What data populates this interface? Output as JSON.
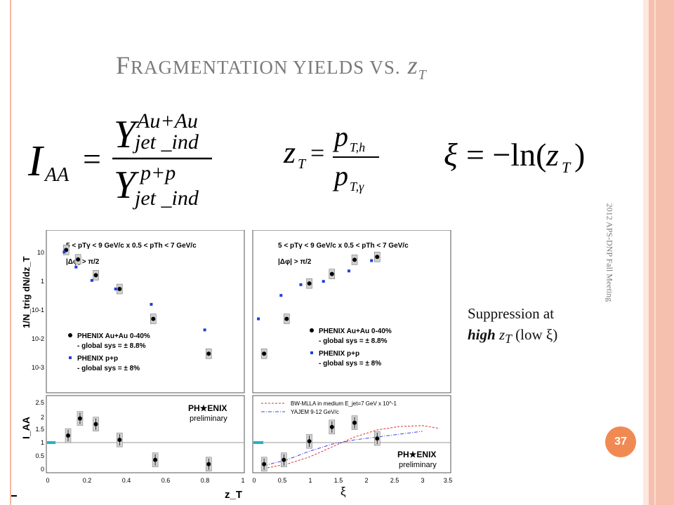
{
  "slide": {
    "title_first_letter": "F",
    "title_rest": "RAGMENTATION YIELDS VS.",
    "title_z": "z",
    "title_z_sub": "T",
    "side_text": "2012 APS-DNP Fall Meeting",
    "page_number": "37",
    "note_line1": "Suppression at",
    "note_bold": "high",
    "note_z": "z",
    "note_z_sub": "T",
    "note_tail": "(low ξ)"
  },
  "equations": {
    "iaa_I": "I",
    "iaa_sub": "AA",
    "eq_sign": "=",
    "Y": "Y",
    "num_sup": "Au+Au",
    "den_sup": "p+p",
    "yield_sub": "jet _ind",
    "zt_z": "z",
    "zt_sub": "T",
    "zt_num_p": "p",
    "zt_num_sub": "T,h",
    "zt_den_p": "p",
    "zt_den_sub": "T,γ",
    "xi_lhs": "ξ",
    "xi_rhs": "= −ln(",
    "xi_z": "z",
    "xi_z_sub": "T",
    "xi_close": ")"
  },
  "chart_data": [
    {
      "type": "scatter",
      "panel": "yield vs zT",
      "ylabel": "1/N_trig dN/dz_T",
      "yscale": "log",
      "ylim": [
        0.0002,
        30
      ],
      "xlim": [
        0,
        1
      ],
      "ytick_labels": [
        "10",
        "1",
        "10-1",
        "10-2",
        "10-3"
      ],
      "header": "5 < pTγ < 9 GeV/c x 0.5 < pTh < 7 GeV/c",
      "cut": "|Δφ| > π/2",
      "series": [
        {
          "name": "PHENIX Au+Au 0-40%",
          "sys": "- global sys = ± 8.8%",
          "color": "#000000",
          "x": [
            0.1,
            0.16,
            0.25,
            0.37,
            0.54,
            0.82
          ],
          "y": [
            7.0,
            3.5,
            1.1,
            0.4,
            0.045,
            0.0035
          ]
        },
        {
          "name": "PHENIX p+p",
          "sys": "- global sys = ± 8%",
          "color": "#1f3fd8",
          "x": [
            0.09,
            0.15,
            0.23,
            0.35,
            0.53,
            0.8
          ],
          "y": [
            6.0,
            2.0,
            0.75,
            0.4,
            0.13,
            0.02
          ]
        }
      ]
    },
    {
      "type": "scatter",
      "panel": "yield vs xi",
      "yscale": "log",
      "ylim": [
        0.0002,
        30
      ],
      "xlim": [
        0,
        3.5
      ],
      "header": "5 < pTγ < 9 GeV/c x 0.5 < pTh < 7 GeV/c",
      "cut": "|Δφ| > π/2",
      "series": [
        {
          "name": "PHENIX Au+Au 0-40%",
          "sys": "- global sys = ± 8.8%",
          "color": "#000000",
          "x": [
            0.2,
            0.6,
            1.0,
            1.4,
            1.8,
            2.2
          ],
          "y": [
            0.0035,
            0.045,
            0.6,
            1.2,
            3.4,
            4.2
          ]
        },
        {
          "name": "PHENIX p+p",
          "sys": "- global sys = ± 8%",
          "color": "#1f3fd8",
          "x": [
            0.1,
            0.5,
            0.85,
            1.25,
            1.7,
            2.1
          ],
          "y": [
            0.045,
            0.25,
            0.55,
            0.7,
            1.5,
            3.2
          ]
        }
      ]
    },
    {
      "type": "scatter",
      "panel": "IAA vs zT",
      "xlabel": "z_T",
      "ylabel": "I_AA",
      "xlim": [
        0,
        1
      ],
      "ylim": [
        -0.1,
        2.6
      ],
      "xticks": [
        "0",
        "0.2",
        "0.4",
        "0.6",
        "0.8",
        "1"
      ],
      "yticks": [
        "0",
        "0.5",
        "1",
        "1.5",
        "2",
        "2.5"
      ],
      "logo": "PH★ENIX",
      "logo_sub": "preliminary",
      "x": [
        0.11,
        0.17,
        0.25,
        0.37,
        0.55,
        0.82
      ],
      "y": [
        1.2,
        1.8,
        1.6,
        1.05,
        0.35,
        0.2
      ]
    },
    {
      "type": "scatter",
      "panel": "IAA vs xi",
      "xlabel": "ξ",
      "xlim": [
        0,
        3.5
      ],
      "ylim": [
        -0.1,
        2.6
      ],
      "xticks": [
        "0",
        "0.5",
        "1",
        "1.5",
        "2",
        "2.5",
        "3",
        "3.5"
      ],
      "logo": "PH★ENIX",
      "logo_sub": "preliminary",
      "x": [
        0.2,
        0.55,
        1.0,
        1.4,
        1.8,
        2.2
      ],
      "y": [
        0.2,
        0.35,
        1.0,
        1.5,
        1.65,
        1.1
      ],
      "curves": [
        {
          "name": "BW-MLLA in medium E_jet=7 GeV x 10^-1",
          "color": "#e03030",
          "x": [
            0.2,
            0.6,
            1.0,
            1.4,
            1.8,
            2.2,
            2.6,
            3.0,
            3.3
          ],
          "y": [
            0.05,
            0.2,
            0.45,
            0.8,
            1.15,
            1.4,
            1.52,
            1.55,
            1.45
          ]
        },
        {
          "name": "YAJEM 9-12 GeV/c",
          "color": "#4040e0",
          "x": [
            0.2,
            0.6,
            1.0,
            1.4,
            1.8,
            2.2,
            2.6,
            3.0
          ],
          "y": [
            0.15,
            0.35,
            0.65,
            0.9,
            1.05,
            1.15,
            1.25,
            1.35
          ]
        }
      ]
    }
  ]
}
